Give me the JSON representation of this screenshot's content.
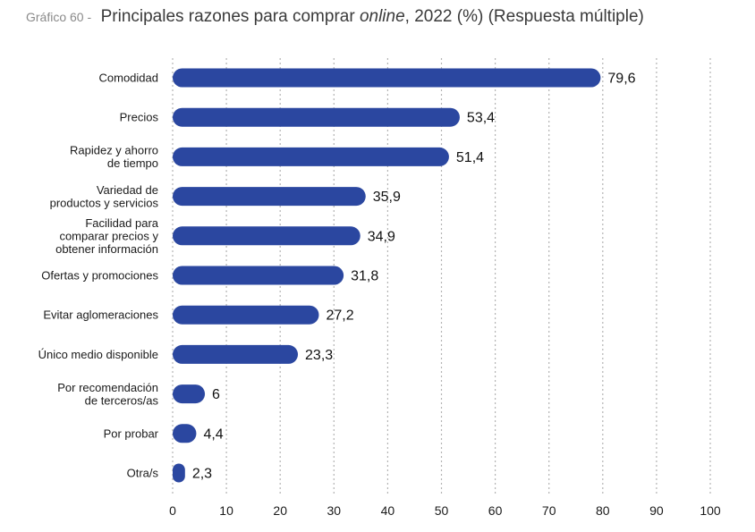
{
  "header": {
    "figure_label": "Gráfico 60 -",
    "title_part1": "Principales razones para comprar ",
    "title_italic": "online",
    "title_part2": ", 2022 (%) (Respuesta múltiple)"
  },
  "colors": {
    "bar": "#2b47a0"
  },
  "chart_data": {
    "type": "bar",
    "orientation": "horizontal",
    "title": "Principales razones para comprar online, 2022 (%) (Respuesta múltiple)",
    "categories": [
      [
        "Comodidad"
      ],
      [
        "Precios"
      ],
      [
        "Rapidez y ahorro",
        "de tiempo"
      ],
      [
        "Variedad de",
        "productos y servicios"
      ],
      [
        "Facilidad para",
        "comparar precios y",
        "obtener información"
      ],
      [
        "Ofertas y promociones"
      ],
      [
        "Evitar aglomeraciones"
      ],
      [
        "Único medio disponible"
      ],
      [
        "Por recomendación",
        "de terceros/as"
      ],
      [
        "Por probar"
      ],
      [
        "Otra/s"
      ]
    ],
    "values": [
      79.6,
      53.4,
      51.4,
      35.9,
      34.9,
      31.8,
      27.2,
      23.3,
      6,
      4.4,
      2.3
    ],
    "value_labels": [
      "79,6",
      "53,4",
      "51,4",
      "35,9",
      "34,9",
      "31,8",
      "27,2",
      "23,3",
      "6",
      "4,4",
      "2,3"
    ],
    "xlim": [
      0,
      100
    ],
    "xticks": [
      0,
      10,
      20,
      30,
      40,
      50,
      60,
      70,
      80,
      90,
      100
    ],
    "grid": "vertical dotted",
    "xlabel": "",
    "ylabel": ""
  }
}
